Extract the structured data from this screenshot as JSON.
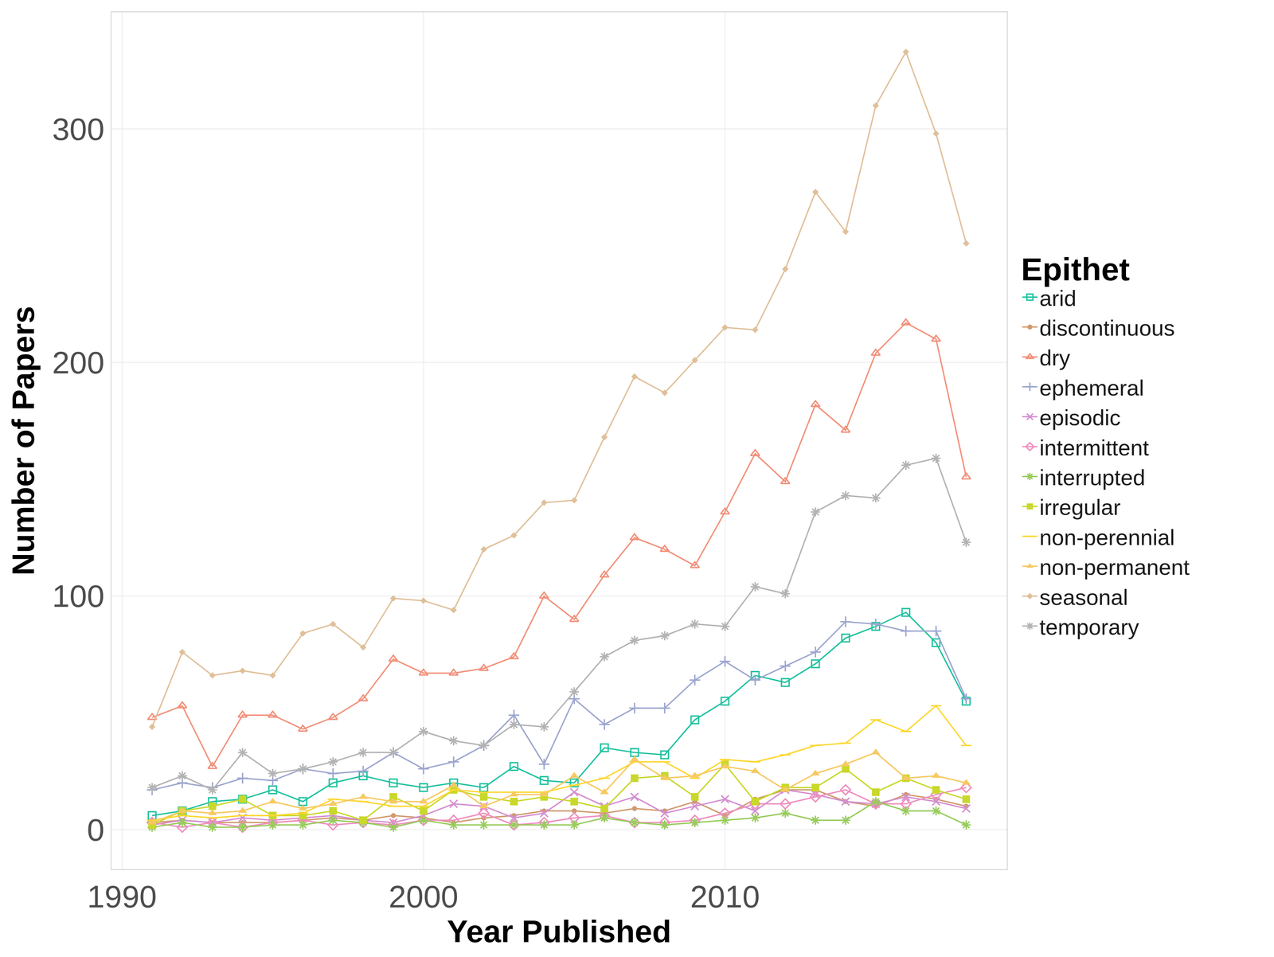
{
  "chart_data": {
    "type": "line",
    "x_label": "Year Published",
    "y_label": "Number of Papers",
    "legend_title": "Epithet",
    "legend": "right",
    "grid": true,
    "x": [
      1991,
      1992,
      1993,
      1994,
      1995,
      1996,
      1997,
      1998,
      1999,
      2000,
      2001,
      2002,
      2003,
      2004,
      2005,
      2006,
      2007,
      2008,
      2009,
      2010,
      2011,
      2012,
      2013,
      2014,
      2015,
      2016,
      2017,
      2018
    ],
    "xlim": [
      1989.65,
      2019.35
    ],
    "xticks": [
      1990,
      2000,
      2010
    ],
    "ylim": [
      -17,
      350
    ],
    "yticks": [
      0,
      100,
      200,
      300
    ],
    "series": [
      {
        "name": "arid",
        "color": "#20c2a0",
        "marker": "square-open",
        "values": [
          6,
          8,
          12,
          13,
          17,
          12,
          20,
          23,
          20,
          18,
          20,
          18,
          27,
          21,
          20,
          35,
          33,
          32,
          47,
          55,
          66,
          63,
          71,
          82,
          87,
          93,
          80,
          55
        ]
      },
      {
        "name": "discontinuous",
        "color": "#d19a6e",
        "marker": "circle",
        "values": [
          3,
          4,
          3,
          3,
          3,
          4,
          5,
          4,
          6,
          5,
          3,
          5,
          6,
          8,
          8,
          7,
          9,
          8,
          12,
          6,
          13,
          17,
          17,
          12,
          10,
          15,
          13,
          10
        ]
      },
      {
        "name": "dry",
        "color": "#f2907a",
        "marker": "triangle-up-open",
        "values": [
          48,
          53,
          27,
          49,
          49,
          43,
          48,
          56,
          73,
          67,
          67,
          69,
          74,
          100,
          90,
          109,
          125,
          120,
          113,
          136,
          161,
          149,
          182,
          171,
          204,
          217,
          210,
          151
        ]
      },
      {
        "name": "ephemeral",
        "color": "#9da6cf",
        "marker": "cross-thin",
        "values": [
          17,
          20,
          18,
          22,
          21,
          26,
          24,
          25,
          33,
          26,
          29,
          36,
          49,
          28,
          56,
          45,
          52,
          52,
          64,
          72,
          64,
          70,
          76,
          89,
          88,
          85,
          85,
          56
        ]
      },
      {
        "name": "episodic",
        "color": "#d48fd0",
        "marker": "x-thin",
        "values": [
          2,
          4,
          3,
          5,
          4,
          5,
          6,
          4,
          3,
          6,
          11,
          10,
          5,
          7,
          16,
          10,
          14,
          7,
          10,
          13,
          8,
          17,
          15,
          12,
          11,
          14,
          12,
          9
        ]
      },
      {
        "name": "intermittent",
        "color": "#ef8fbf",
        "marker": "diamond-open",
        "values": [
          3,
          1,
          3,
          1,
          3,
          4,
          2,
          3,
          2,
          4,
          4,
          7,
          2,
          3,
          5,
          6,
          3,
          3,
          4,
          7,
          11,
          11,
          14,
          17,
          11,
          11,
          15,
          18
        ]
      },
      {
        "name": "interrupted",
        "color": "#98cc5c",
        "marker": "asterisk",
        "values": [
          1,
          3,
          1,
          1,
          2,
          2,
          4,
          3,
          1,
          4,
          2,
          2,
          2,
          2,
          2,
          5,
          3,
          2,
          3,
          4,
          5,
          7,
          4,
          4,
          12,
          8,
          8,
          2
        ]
      },
      {
        "name": "irregular",
        "color": "#c9d82b",
        "marker": "square",
        "values": [
          2,
          8,
          10,
          13,
          6,
          6,
          8,
          4,
          14,
          8,
          17,
          14,
          12,
          14,
          12,
          9,
          22,
          23,
          14,
          28,
          12,
          18,
          18,
          26,
          16,
          22,
          17,
          13
        ]
      },
      {
        "name": "non-perennial",
        "color": "#fcd730",
        "marker": "line-ew",
        "values": [
          4,
          6,
          5,
          6,
          6,
          7,
          13,
          12,
          10,
          10,
          17,
          16,
          16,
          16,
          19,
          22,
          29,
          29,
          22,
          30,
          29,
          32,
          36,
          37,
          47,
          42,
          53,
          36
        ]
      },
      {
        "name": "non-permanent",
        "color": "#f7c962",
        "marker": "triangle-up",
        "values": [
          3,
          8,
          7,
          8,
          12,
          9,
          11,
          14,
          12,
          12,
          19,
          10,
          15,
          15,
          23,
          16,
          30,
          22,
          23,
          27,
          25,
          17,
          24,
          28,
          33,
          22,
          23,
          20
        ]
      },
      {
        "name": "seasonal",
        "color": "#e0c09a",
        "marker": "diamond",
        "values": [
          44,
          76,
          66,
          68,
          66,
          84,
          88,
          78,
          99,
          98,
          94,
          120,
          126,
          140,
          141,
          168,
          194,
          187,
          201,
          215,
          214,
          240,
          273,
          256,
          310,
          333,
          298,
          251
        ]
      },
      {
        "name": "temporary",
        "color": "#b3b3b3",
        "marker": "asterisk-open",
        "values": [
          18,
          23,
          17,
          33,
          24,
          26,
          29,
          33,
          33,
          42,
          38,
          36,
          45,
          44,
          59,
          74,
          81,
          83,
          88,
          87,
          104,
          101,
          136,
          143,
          142,
          156,
          159,
          123
        ]
      }
    ]
  }
}
